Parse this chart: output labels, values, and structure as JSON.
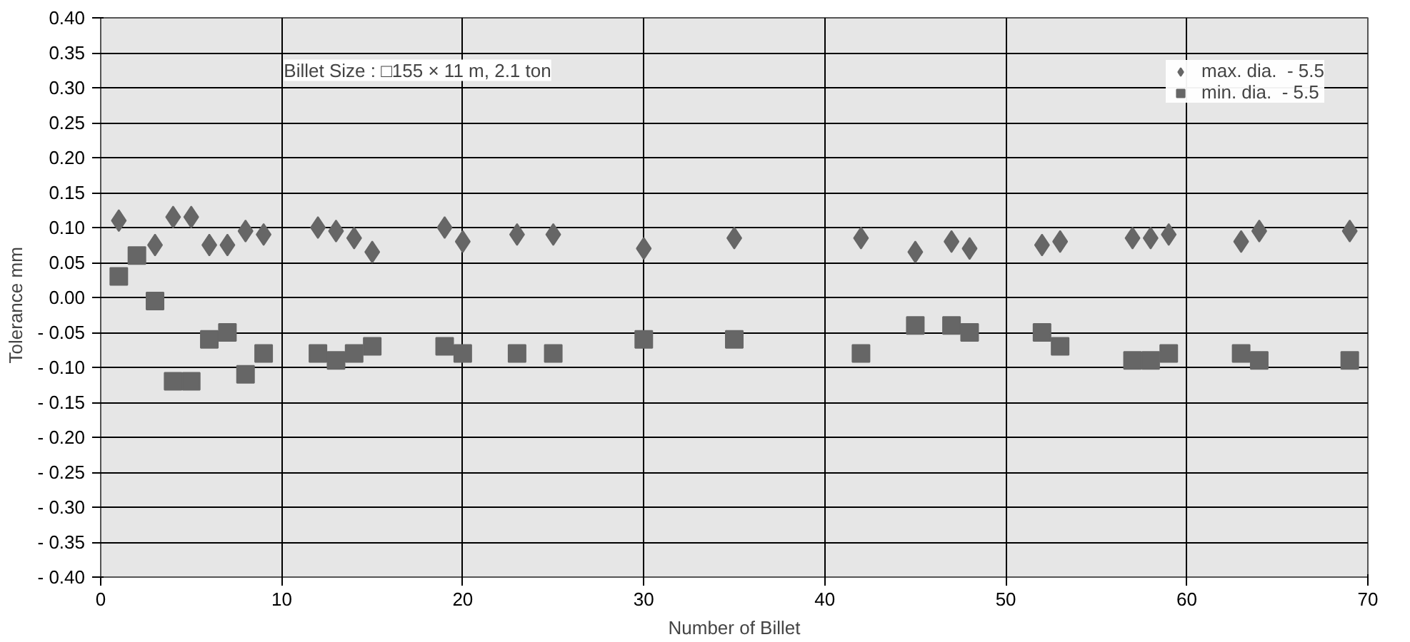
{
  "chart_data": {
    "type": "scatter",
    "xlabel": "Number of Billet",
    "ylabel": "Tolerance    mm",
    "xlim": [
      0,
      70
    ],
    "xticks": [
      0,
      10,
      20,
      30,
      40,
      50,
      60,
      70
    ],
    "ylim": [
      -0.4,
      0.4
    ],
    "yticks": [
      {
        "value": 0.4,
        "label": "0.40"
      },
      {
        "value": 0.35,
        "label": "0.35"
      },
      {
        "value": 0.3,
        "label": "0.30"
      },
      {
        "value": 0.25,
        "label": "0.25"
      },
      {
        "value": 0.2,
        "label": "0.20"
      },
      {
        "value": 0.15,
        "label": "0.15"
      },
      {
        "value": 0.1,
        "label": "0.10"
      },
      {
        "value": 0.05,
        "label": "0.05"
      },
      {
        "value": 0,
        "label": "0.00"
      },
      {
        "value": -0.05,
        "label": "- 0.05"
      },
      {
        "value": -0.1,
        "label": "- 0.10"
      },
      {
        "value": -0.15,
        "label": "- 0.15"
      },
      {
        "value": -0.2,
        "label": "- 0.20"
      },
      {
        "value": -0.25,
        "label": "- 0.25"
      },
      {
        "value": -0.3,
        "label": "- 0.30"
      },
      {
        "value": -0.35,
        "label": "- 0.35"
      },
      {
        "value": -0.4,
        "label": "- 0.40"
      }
    ],
    "grid": true,
    "legend": "top right",
    "annotations": [
      "Billet Size : □155 × 11 m, 2.1 ton"
    ],
    "series": [
      {
        "name": "max. dia.  - 5.5",
        "color": "#666666",
        "marker": "diamond",
        "x": [
          1,
          3,
          4,
          5,
          6,
          7,
          8,
          9,
          12,
          13,
          14,
          15,
          19,
          20,
          23,
          25,
          30,
          35,
          42,
          45,
          47,
          48,
          52,
          53,
          57,
          58,
          59,
          63,
          64,
          69
        ],
        "values": [
          0.11,
          0.075,
          0.115,
          0.115,
          0.075,
          0.075,
          0.095,
          0.09,
          0.1,
          0.095,
          0.085,
          0.065,
          0.1,
          0.08,
          0.09,
          0.09,
          0.07,
          0.085,
          0.085,
          0.065,
          0.08,
          0.07,
          0.075,
          0.08,
          0.085,
          0.085,
          0.09,
          0.08,
          0.095,
          0.095
        ]
      },
      {
        "name": "min. dia.  - 5.5",
        "color": "#666666",
        "marker": "square",
        "x": [
          1,
          2,
          3,
          4,
          5,
          6,
          7,
          8,
          9,
          12,
          13,
          14,
          15,
          19,
          20,
          23,
          25,
          30,
          35,
          42,
          45,
          47,
          48,
          52,
          53,
          57,
          58,
          59,
          63,
          64,
          69
        ],
        "values": [
          0.03,
          0.06,
          -0.005,
          -0.12,
          -0.12,
          -0.06,
          -0.05,
          -0.11,
          -0.08,
          -0.08,
          -0.09,
          -0.08,
          -0.07,
          -0.07,
          -0.08,
          -0.08,
          -0.08,
          -0.06,
          -0.06,
          -0.08,
          -0.04,
          -0.04,
          -0.05,
          -0.05,
          -0.07,
          -0.09,
          -0.09,
          -0.08,
          -0.08,
          -0.09,
          -0.09
        ]
      }
    ]
  }
}
